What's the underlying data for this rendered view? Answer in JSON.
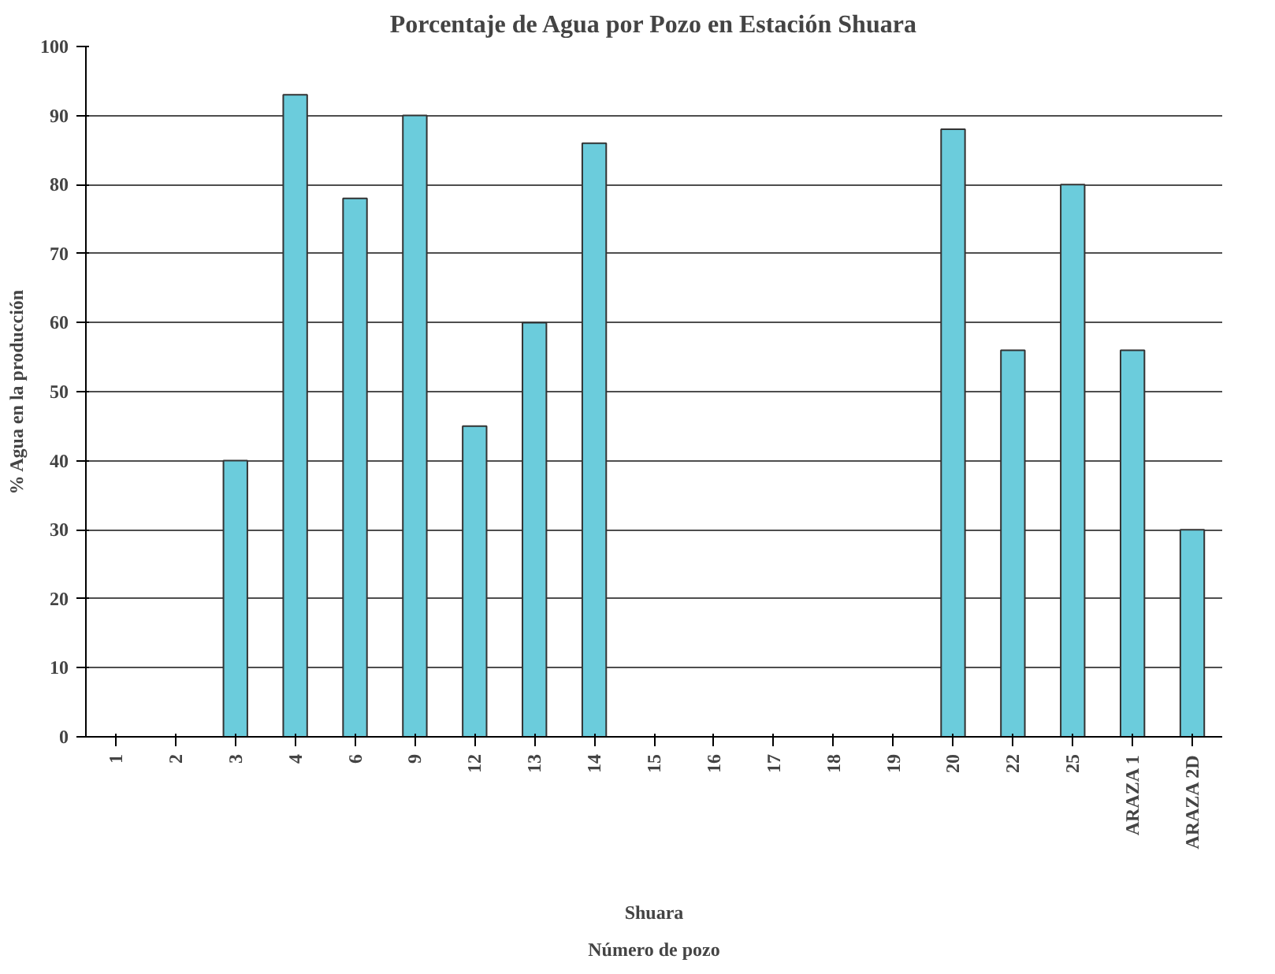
{
  "chart_data": {
    "type": "bar",
    "title": "Porcentaje de Agua por Pozo en Estación Shuara",
    "xlabel": "Shuara",
    "ylabel": "% Agua en la producción",
    "annotations": [
      "Número de pozo"
    ],
    "categories": [
      "1",
      "2",
      "3",
      "4",
      "6",
      "9",
      "12",
      "13",
      "14",
      "15",
      "16",
      "17",
      "18",
      "19",
      "20",
      "22",
      "25",
      "ARAZA 1",
      "ARAZA 2D"
    ],
    "values": [
      null,
      null,
      40,
      93,
      78,
      90,
      45,
      60,
      86,
      null,
      null,
      null,
      null,
      null,
      88,
      56,
      80,
      56,
      30
    ],
    "color": "#6bccdc",
    "ylim": [
      0,
      100
    ],
    "yticks": [
      0,
      10,
      20,
      30,
      40,
      50,
      60,
      70,
      80,
      90,
      100
    ],
    "grid": "y"
  }
}
